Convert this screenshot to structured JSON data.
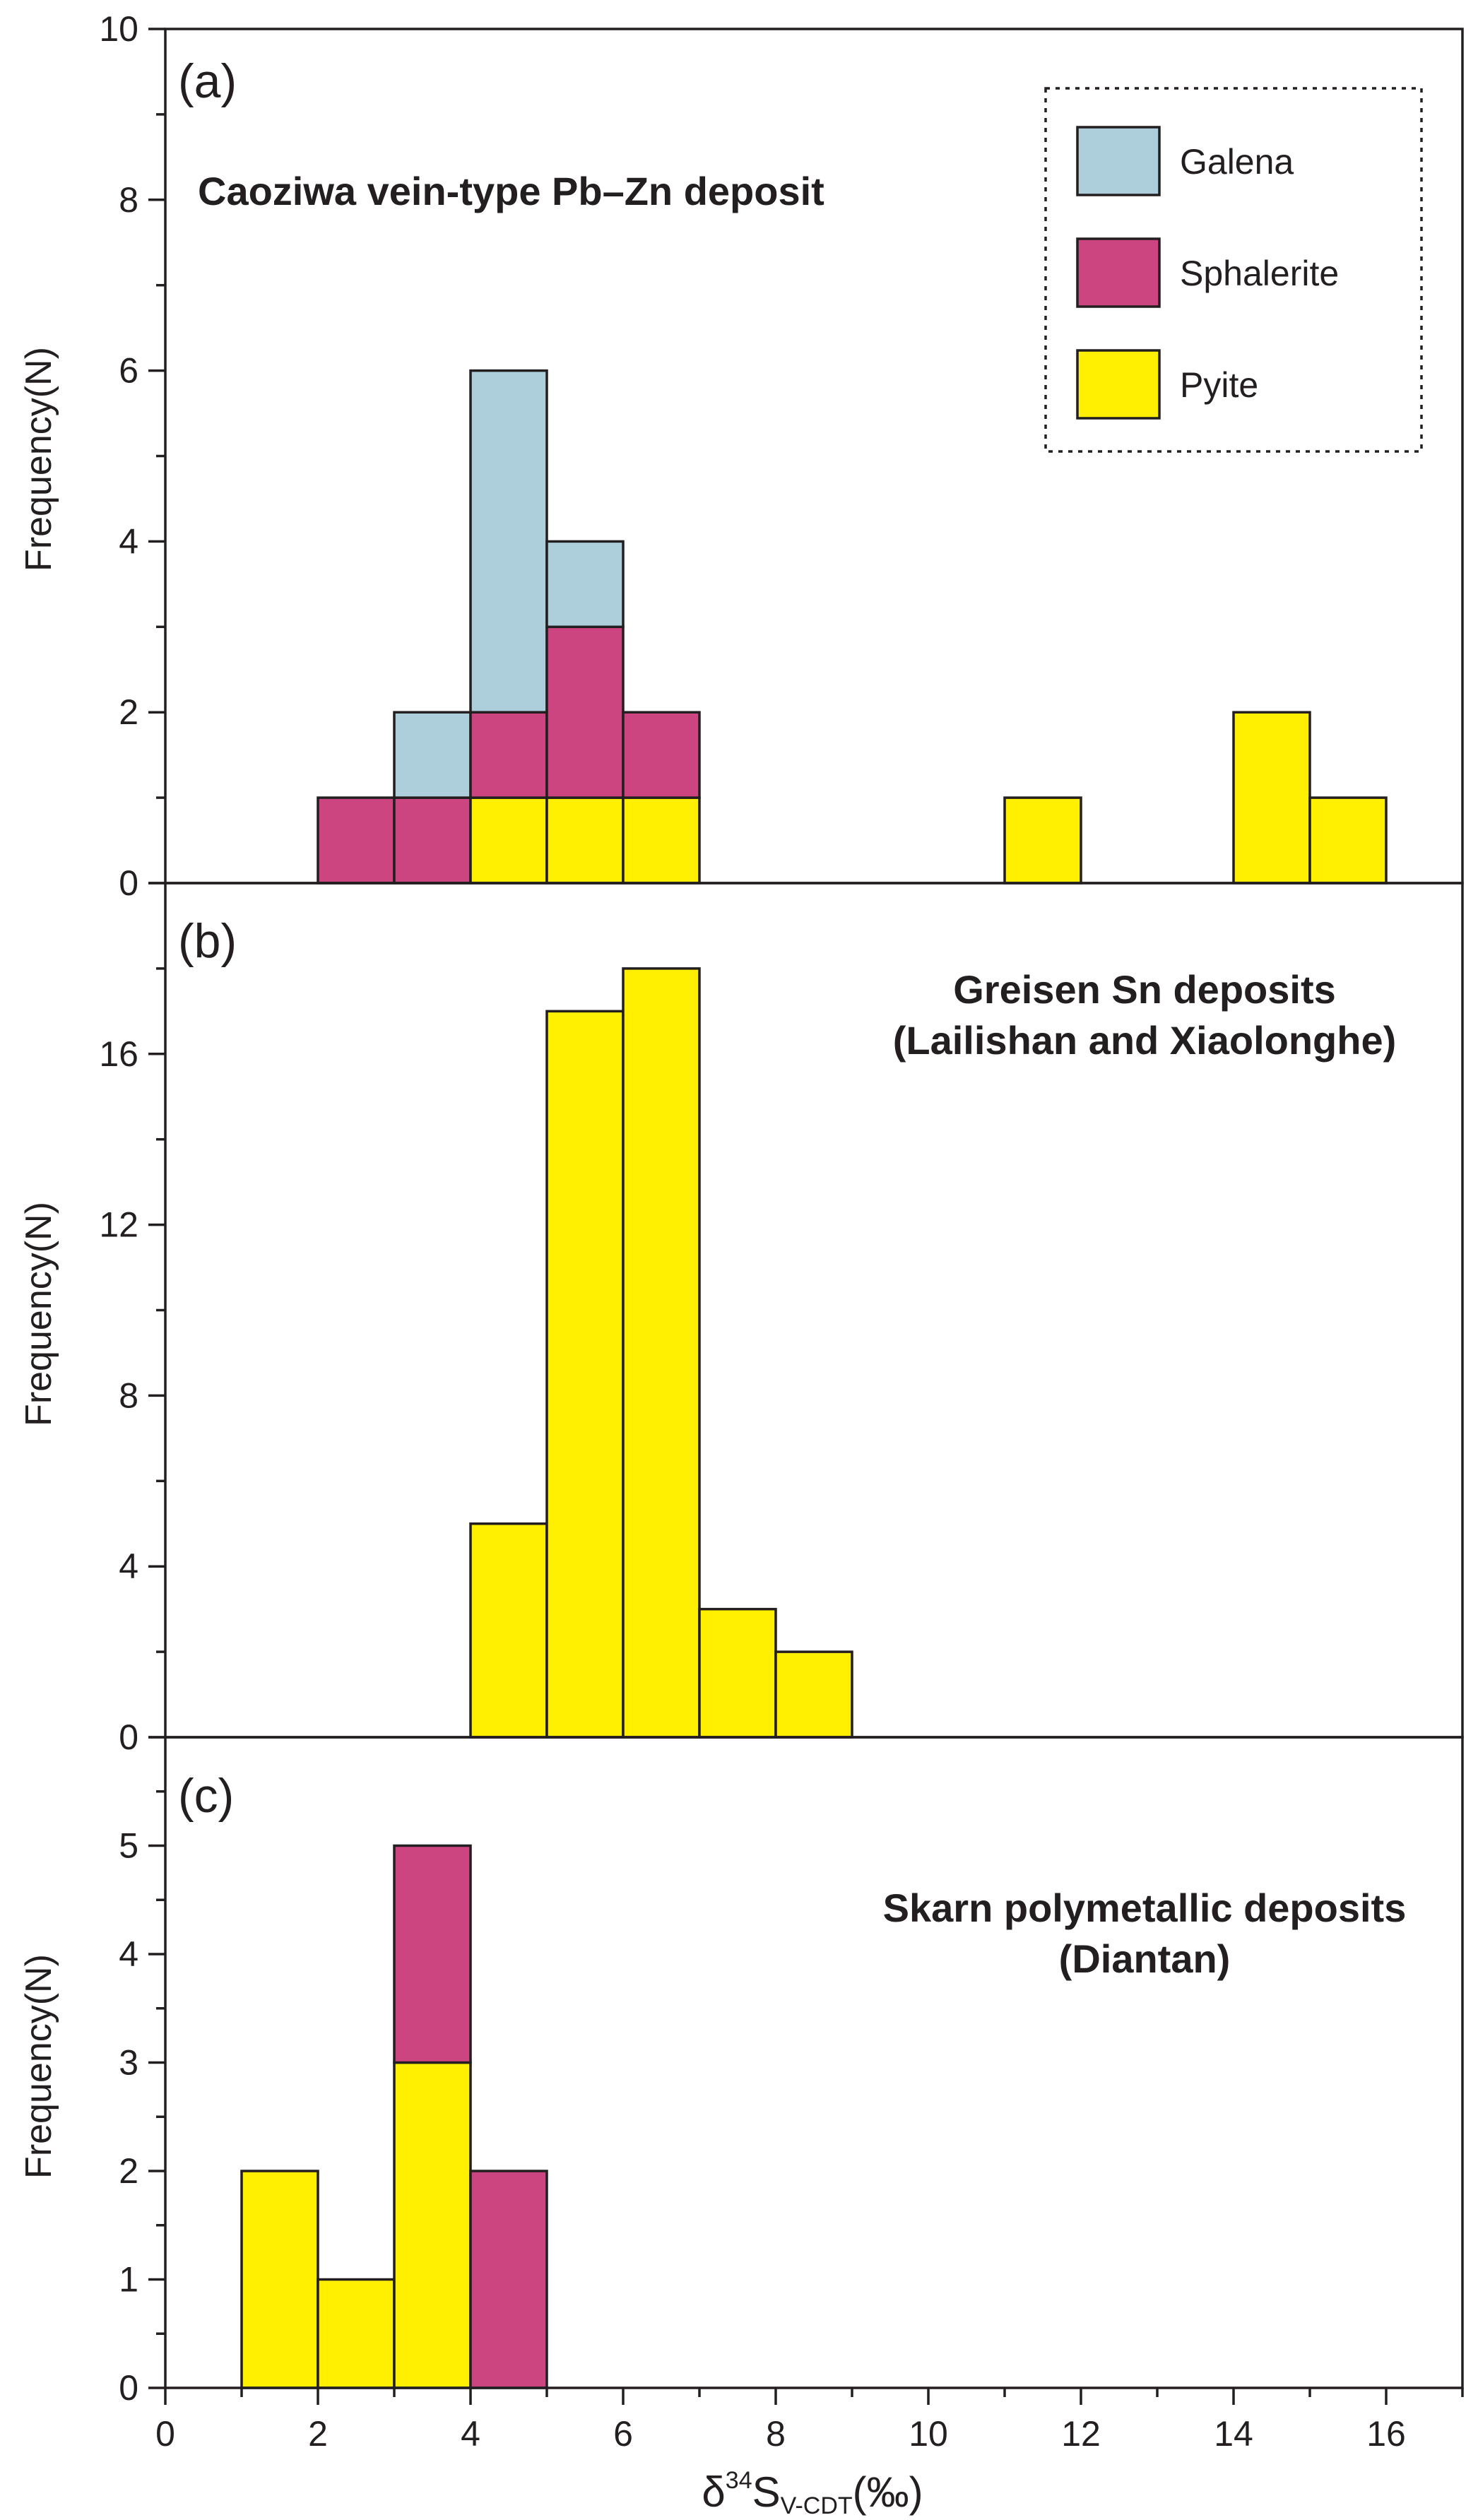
{
  "colors": {
    "Galena": "#adcfdb",
    "Sphalerite": "#cc4580",
    "Pyite": "#ffef00",
    "axis": "#231f20"
  },
  "legend": {
    "entries": [
      "Galena",
      "Sphalerite",
      "Pyite"
    ],
    "position": "top-right",
    "border": "dotted"
  },
  "xaxis": {
    "ticks": [
      "0",
      "2",
      "4",
      "6",
      "8",
      "10",
      "12",
      "14",
      "16"
    ],
    "label_main": "δ",
    "label_sup": "34",
    "label_S": "S",
    "label_sub": "V-CDT",
    "label_unit": "(‰)",
    "xlim": [
      0,
      17
    ]
  },
  "chart_data": [
    {
      "type": "bar",
      "stacked": true,
      "panel": "(a)",
      "title": [
        "Caoziwa vein-type Pb–Zn deposit"
      ],
      "ylabel": "Frequency(N)",
      "ylim": [
        0,
        10
      ],
      "yticks": [
        "0",
        "2",
        "4",
        "6",
        "8",
        "10"
      ],
      "bins": [
        [
          2,
          3
        ],
        [
          3,
          4
        ],
        [
          4,
          5
        ],
        [
          5,
          6
        ],
        [
          6,
          7
        ],
        [
          11,
          12
        ],
        [
          14,
          15
        ],
        [
          15,
          16
        ]
      ],
      "series": [
        {
          "name": "Pyite",
          "values": [
            0,
            0,
            1,
            1,
            1,
            1,
            2,
            1
          ]
        },
        {
          "name": "Sphalerite",
          "values": [
            1,
            1,
            1,
            2,
            1,
            0,
            0,
            0
          ]
        },
        {
          "name": "Galena",
          "values": [
            0,
            1,
            4,
            1,
            0,
            0,
            0,
            0
          ]
        }
      ]
    },
    {
      "type": "bar",
      "stacked": true,
      "panel": "(b)",
      "title": [
        "Greisen Sn deposits",
        "(Lailishan and Xiaolonghe)"
      ],
      "ylabel": "Frequency(N)",
      "ylim": [
        0,
        20
      ],
      "yticks": [
        "0",
        "4",
        "8",
        "12",
        "16"
      ],
      "bins": [
        [
          4,
          5
        ],
        [
          5,
          6
        ],
        [
          6,
          7
        ],
        [
          7,
          8
        ],
        [
          8,
          9
        ]
      ],
      "series": [
        {
          "name": "Pyite",
          "values": [
            5,
            17,
            18,
            3,
            2
          ]
        }
      ]
    },
    {
      "type": "bar",
      "stacked": true,
      "panel": "(c)",
      "title": [
        "Skarn polymetallic deposits",
        "(Diantan)"
      ],
      "ylabel": "Frequency(N)",
      "ylim": [
        0,
        6
      ],
      "yticks": [
        "0",
        "1",
        "2",
        "3",
        "4",
        "5"
      ],
      "bins": [
        [
          1,
          2
        ],
        [
          2,
          3
        ],
        [
          3,
          4
        ],
        [
          4,
          5
        ]
      ],
      "series": [
        {
          "name": "Pyite",
          "values": [
            2,
            1,
            3,
            0
          ]
        },
        {
          "name": "Sphalerite",
          "values": [
            0,
            0,
            2,
            2
          ]
        }
      ]
    }
  ]
}
